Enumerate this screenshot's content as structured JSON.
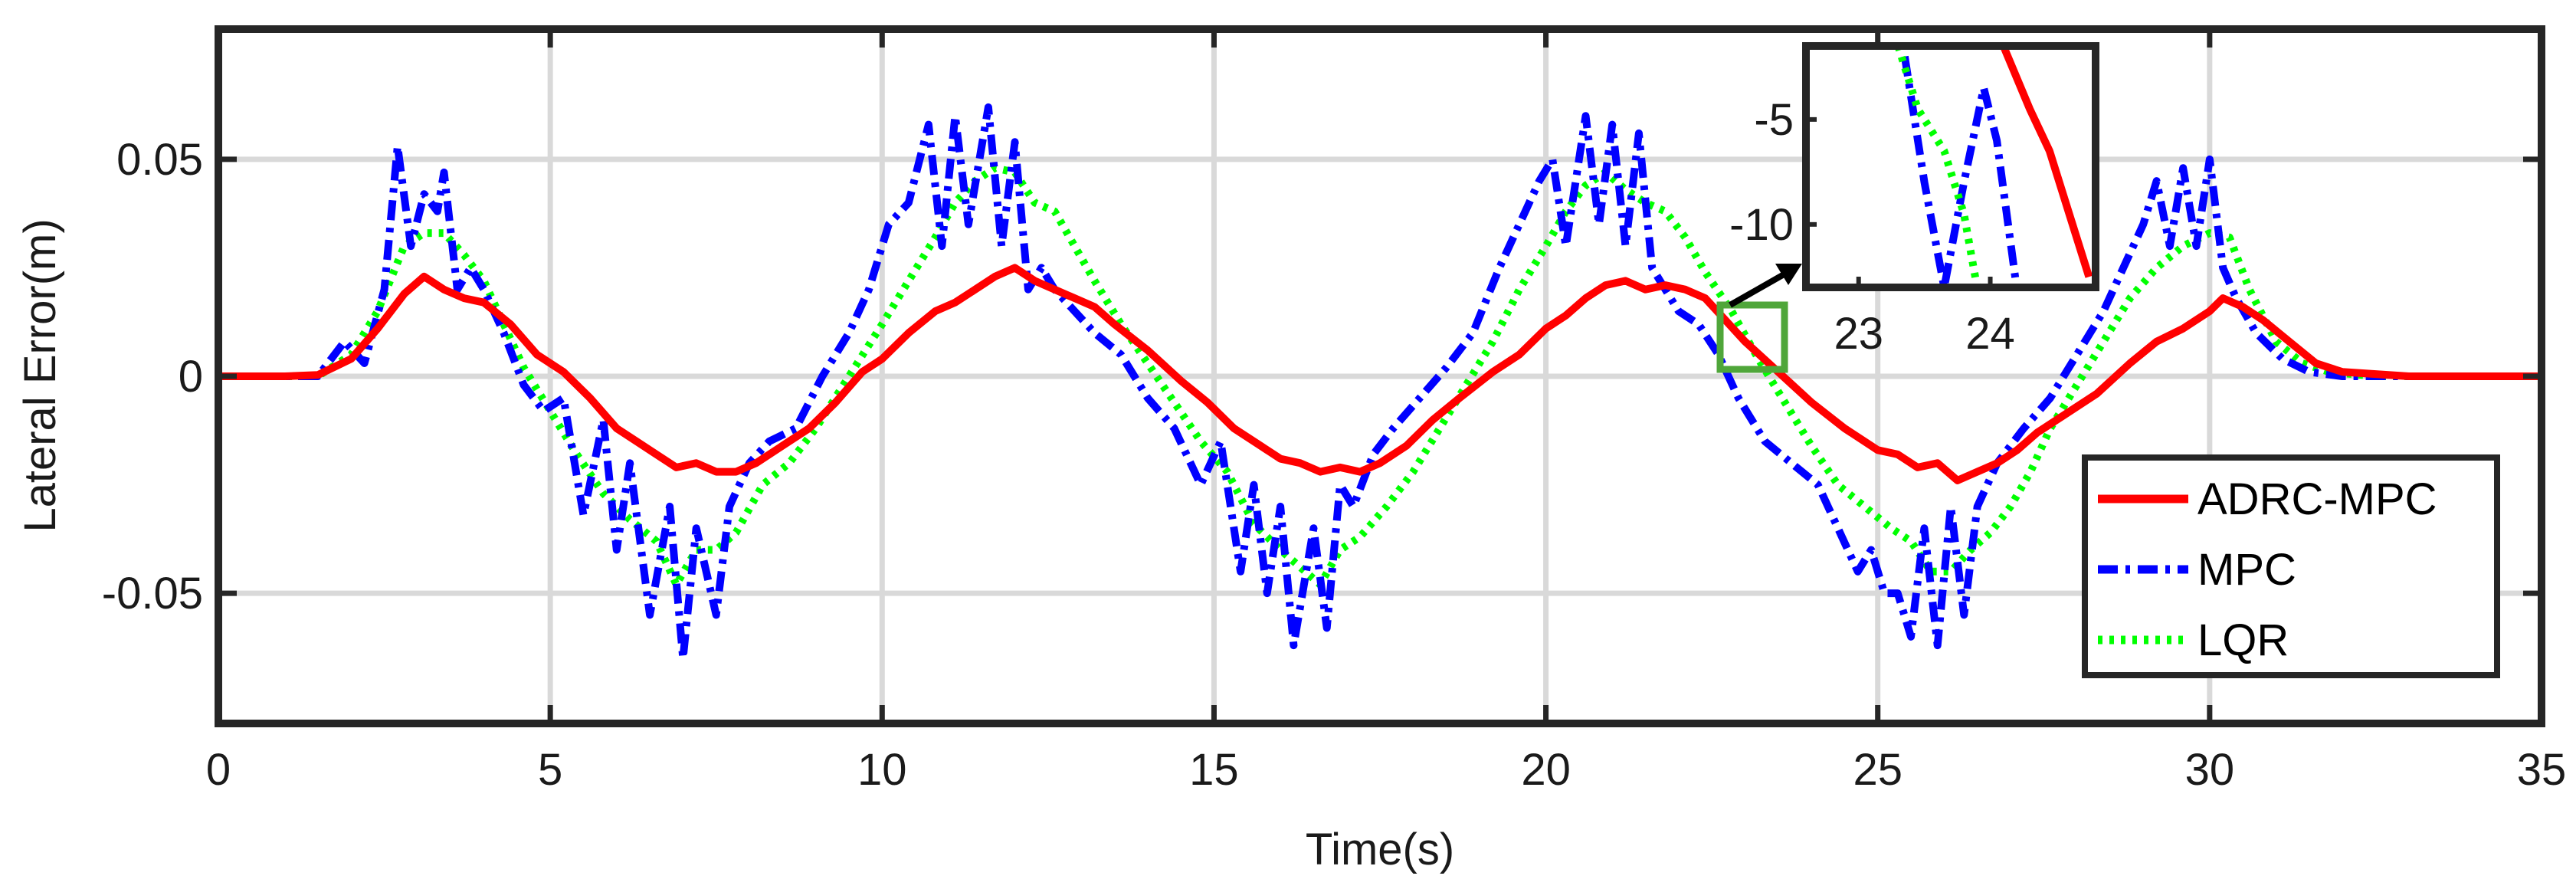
{
  "chart_data": [
    {
      "type": "line",
      "title": "",
      "xlabel": "Time(s)",
      "ylabel": "Lateral Error(m)",
      "xlim": [
        0,
        35
      ],
      "ylim": [
        -0.08,
        0.08
      ],
      "xticks": [
        0,
        5,
        10,
        15,
        20,
        25,
        30,
        35
      ],
      "xtick_labels": [
        "0",
        "5",
        "10",
        "15",
        "20",
        "25",
        "30",
        "35"
      ],
      "yticks": [
        -0.05,
        0,
        0.05
      ],
      "ytick_labels": [
        "-0.05",
        "0",
        "0.05"
      ],
      "grid": true,
      "legend": "bottom-right",
      "series": [
        {
          "name": "ADRC-MPC",
          "color": "#ff0000",
          "style": "solid",
          "x": [
            0,
            1,
            1.5,
            2,
            2.4,
            2.8,
            3.1,
            3.4,
            3.7,
            4.0,
            4.4,
            4.8,
            5.2,
            5.6,
            6.0,
            6.3,
            6.6,
            6.9,
            7.2,
            7.5,
            7.8,
            8.1,
            8.5,
            8.9,
            9.3,
            9.7,
            10.0,
            10.4,
            10.8,
            11.1,
            11.4,
            11.7,
            12.0,
            12.3,
            12.6,
            12.9,
            13.2,
            13.5,
            14.0,
            14.5,
            14.9,
            15.3,
            15.7,
            16.0,
            16.3,
            16.6,
            16.9,
            17.2,
            17.5,
            17.9,
            18.3,
            18.7,
            19.2,
            19.6,
            20.0,
            20.3,
            20.6,
            20.9,
            21.2,
            21.5,
            21.8,
            22.1,
            22.4,
            22.7,
            23.0,
            23.5,
            24.0,
            24.5,
            25.0,
            25.3,
            25.6,
            25.9,
            26.2,
            26.5,
            26.8,
            27.1,
            27.4,
            27.8,
            28.3,
            28.8,
            29.2,
            29.6,
            30.0,
            30.2,
            30.5,
            30.8,
            31.2,
            31.6,
            32.0,
            33.0,
            34.0,
            35.0
          ],
          "values": [
            0,
            0,
            0.0003,
            0.004,
            0.011,
            0.019,
            0.023,
            0.02,
            0.018,
            0.017,
            0.012,
            0.005,
            0.001,
            -0.005,
            -0.012,
            -0.015,
            -0.018,
            -0.021,
            -0.02,
            -0.022,
            -0.022,
            -0.02,
            -0.016,
            -0.012,
            -0.006,
            0.001,
            0.004,
            0.01,
            0.015,
            0.017,
            0.02,
            0.023,
            0.025,
            0.022,
            0.02,
            0.018,
            0.016,
            0.012,
            0.006,
            -0.001,
            -0.006,
            -0.012,
            -0.016,
            -0.019,
            -0.02,
            -0.022,
            -0.021,
            -0.022,
            -0.02,
            -0.016,
            -0.01,
            -0.005,
            0.001,
            0.005,
            0.011,
            0.014,
            0.018,
            0.021,
            0.022,
            0.02,
            0.021,
            0.02,
            0.018,
            0.013,
            0.008,
            0.001,
            -0.006,
            -0.012,
            -0.017,
            -0.018,
            -0.021,
            -0.02,
            -0.024,
            -0.022,
            -0.02,
            -0.017,
            -0.013,
            -0.009,
            -0.004,
            0.003,
            0.008,
            0.011,
            0.015,
            0.018,
            0.016,
            0.013,
            0.008,
            0.003,
            0.001,
            0,
            0,
            0
          ]
        },
        {
          "name": "MPC",
          "color": "#0000ff",
          "style": "dashdot",
          "x": [
            0,
            1,
            1.5,
            1.9,
            2.2,
            2.5,
            2.7,
            2.9,
            3.1,
            3.3,
            3.4,
            3.6,
            3.8,
            4.0,
            4.3,
            4.6,
            4.9,
            5.2,
            5.5,
            5.8,
            6.0,
            6.2,
            6.5,
            6.8,
            7.0,
            7.2,
            7.5,
            7.7,
            8.0,
            8.3,
            8.7,
            9.1,
            9.5,
            9.8,
            10.1,
            10.4,
            10.7,
            10.9,
            11.1,
            11.3,
            11.6,
            11.8,
            12.0,
            12.2,
            12.4,
            12.6,
            12.9,
            13.2,
            13.6,
            14.0,
            14.4,
            14.8,
            15.1,
            15.4,
            15.6,
            15.8,
            16.0,
            16.2,
            16.5,
            16.7,
            16.9,
            17.1,
            17.4,
            17.7,
            18.1,
            18.5,
            18.9,
            19.3,
            19.6,
            19.9,
            20.1,
            20.3,
            20.6,
            20.8,
            21.0,
            21.2,
            21.4,
            21.6,
            21.8,
            22.0,
            22.3,
            22.6,
            22.9,
            23.3,
            23.7,
            24.1,
            24.4,
            24.7,
            24.9,
            25.1,
            25.3,
            25.5,
            25.7,
            25.9,
            26.1,
            26.3,
            26.5,
            26.8,
            27.2,
            27.6,
            28.0,
            28.4,
            28.7,
            29.0,
            29.2,
            29.4,
            29.6,
            29.8,
            30.0,
            30.2,
            30.4,
            30.7,
            31.1,
            31.5,
            32.0,
            33.0,
            34.0,
            34.5,
            35.0
          ],
          "values": [
            0,
            0,
            0,
            0.008,
            0.003,
            0.02,
            0.053,
            0.03,
            0.042,
            0.038,
            0.047,
            0.02,
            0.025,
            0.02,
            0.01,
            -0.002,
            -0.008,
            -0.005,
            -0.032,
            -0.01,
            -0.04,
            -0.02,
            -0.055,
            -0.03,
            -0.065,
            -0.035,
            -0.055,
            -0.03,
            -0.02,
            -0.015,
            -0.012,
            0,
            0.01,
            0.02,
            0.035,
            0.04,
            0.058,
            0.03,
            0.06,
            0.035,
            0.062,
            0.03,
            0.054,
            0.02,
            0.025,
            0.02,
            0.015,
            0.01,
            0.005,
            -0.005,
            -0.012,
            -0.025,
            -0.015,
            -0.045,
            -0.025,
            -0.05,
            -0.03,
            -0.062,
            -0.035,
            -0.058,
            -0.025,
            -0.03,
            -0.018,
            -0.012,
            -0.005,
            0.002,
            0.01,
            0.025,
            0.035,
            0.045,
            0.05,
            0.03,
            0.06,
            0.035,
            0.058,
            0.03,
            0.056,
            0.025,
            0.02,
            0.015,
            0.012,
            0.005,
            -0.005,
            -0.015,
            -0.02,
            -0.025,
            -0.035,
            -0.045,
            -0.04,
            -0.05,
            -0.05,
            -0.06,
            -0.035,
            -0.062,
            -0.03,
            -0.055,
            -0.03,
            -0.02,
            -0.012,
            -0.005,
            0.005,
            0.015,
            0.025,
            0.035,
            0.045,
            0.03,
            0.048,
            0.03,
            0.05,
            0.025,
            0.018,
            0.01,
            0.004,
            0.001,
            0,
            0,
            0,
            0,
            0
          ]
        },
        {
          "name": "LQR",
          "color": "#00ff00",
          "style": "dotted",
          "x": [
            0,
            1,
            1.5,
            2,
            2.4,
            2.8,
            3.1,
            3.4,
            3.7,
            4.0,
            4.3,
            4.6,
            5.0,
            5.4,
            5.8,
            6.2,
            6.6,
            6.9,
            7.2,
            7.5,
            7.8,
            8.2,
            8.6,
            9.0,
            9.5,
            10.0,
            10.4,
            10.8,
            11.1,
            11.4,
            11.7,
            12.0,
            12.3,
            12.6,
            12.9,
            13.2,
            13.6,
            14.0,
            14.4,
            14.8,
            15.2,
            15.6,
            16.0,
            16.3,
            16.6,
            16.9,
            17.2,
            17.6,
            18.0,
            18.4,
            18.8,
            19.2,
            19.6,
            20.0,
            20.3,
            20.6,
            20.9,
            21.2,
            21.5,
            21.8,
            22.1,
            22.4,
            22.8,
            23.2,
            23.6,
            24.0,
            24.4,
            24.8,
            25.2,
            25.5,
            25.8,
            26.1,
            26.4,
            26.7,
            27.0,
            27.3,
            27.6,
            28.0,
            28.4,
            28.8,
            29.2,
            29.6,
            30.0,
            30.3,
            30.6,
            31.0,
            31.4,
            31.8,
            32.5,
            33.5,
            35.0
          ],
          "values": [
            0,
            0,
            0,
            0.005,
            0.015,
            0.03,
            0.033,
            0.033,
            0.028,
            0.022,
            0.012,
            0.002,
            -0.008,
            -0.018,
            -0.027,
            -0.033,
            -0.038,
            -0.048,
            -0.04,
            -0.04,
            -0.036,
            -0.025,
            -0.02,
            -0.012,
            0,
            0.012,
            0.022,
            0.032,
            0.04,
            0.045,
            0.048,
            0.047,
            0.04,
            0.038,
            0.03,
            0.022,
            0.012,
            0.003,
            -0.006,
            -0.015,
            -0.022,
            -0.034,
            -0.04,
            -0.044,
            -0.048,
            -0.04,
            -0.037,
            -0.03,
            -0.022,
            -0.012,
            -0.002,
            0.008,
            0.02,
            0.03,
            0.038,
            0.044,
            0.047,
            0.043,
            0.04,
            0.038,
            0.032,
            0.024,
            0.015,
            0.004,
            -0.006,
            -0.016,
            -0.025,
            -0.03,
            -0.035,
            -0.038,
            -0.045,
            -0.045,
            -0.04,
            -0.036,
            -0.03,
            -0.022,
            -0.012,
            -0.002,
            0.008,
            0.018,
            0.025,
            0.03,
            0.033,
            0.032,
            0.02,
            0.008,
            0.003,
            0.001,
            0,
            0,
            0
          ]
        }
      ]
    },
    {
      "type": "line",
      "title": "",
      "xlim": [
        22.6,
        24.8
      ],
      "ylim": [
        -13,
        -1.5
      ],
      "xticks": [
        23,
        24
      ],
      "xtick_labels": [
        "23",
        "24"
      ],
      "yticks": [
        -5,
        -10
      ],
      "ytick_labels": [
        "-5",
        "-10"
      ],
      "grid": false,
      "series": [
        {
          "name": "ADRC-MPC",
          "color": "#ff0000",
          "x": [
            24.1,
            24.3,
            24.45,
            24.6,
            24.75
          ],
          "values": [
            -1.5,
            -4.5,
            -6.5,
            -9.5,
            -12.5
          ]
        },
        {
          "name": "MPC",
          "color": "#0000ff",
          "x": [
            23.35,
            23.5,
            23.65,
            23.8,
            23.95,
            24.05,
            24.2
          ],
          "values": [
            -2.0,
            -8.0,
            -13.0,
            -8.0,
            -3.5,
            -6.0,
            -13.0
          ]
        },
        {
          "name": "LQR",
          "color": "#00ff00",
          "x": [
            23.3,
            23.45,
            23.65,
            23.8,
            23.9
          ],
          "values": [
            -1.5,
            -4.5,
            -6.5,
            -9.5,
            -13.0
          ]
        }
      ]
    }
  ]
}
